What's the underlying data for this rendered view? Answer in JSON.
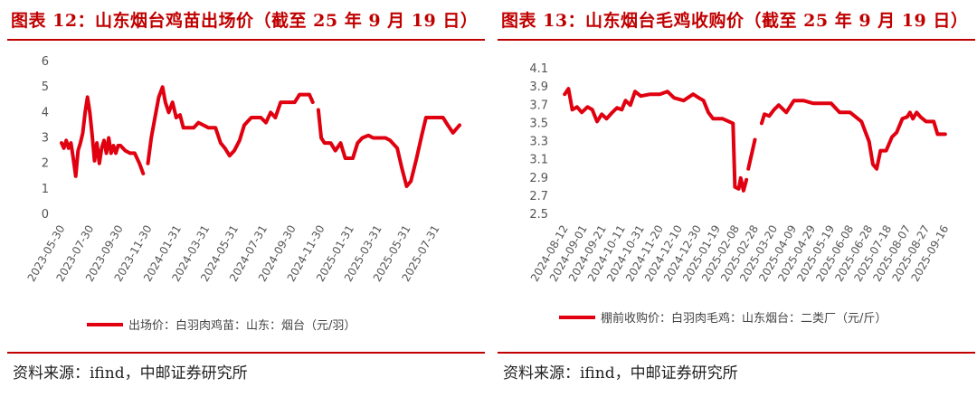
{
  "chart_data": [
    {
      "type": "line",
      "title": "图表 12：山东烟台鸡苗出场价（截至 25 年 9 月 19 日）",
      "source": "资料来源：ifind，中邮证券研究所",
      "ylim": [
        0,
        6
      ],
      "yticks": [
        "0",
        "1",
        "2",
        "3",
        "4",
        "5",
        "6"
      ],
      "xlim": [
        "2023-05-30",
        "2025-09-19"
      ],
      "xticks": [
        "2023-05-30",
        "2023-07-30",
        "2023-09-30",
        "2023-11-30",
        "2024-01-31",
        "2024-03-31",
        "2024-05-31",
        "2024-07-31",
        "2024-09-30",
        "2024-11-30",
        "2025-01-31",
        "2025-03-31",
        "2025-05-31",
        "2025-07-31"
      ],
      "legend": "top-bottom",
      "color": "#e0000f",
      "series": [
        {
          "name": "出场价：白羽肉鸡苗：山东：烟台（元/羽）",
          "segments": [
            [
              [
                "2023-05-30",
                2.8
              ],
              [
                "2023-06-04",
                2.6
              ],
              [
                "2023-06-09",
                2.9
              ],
              [
                "2023-06-14",
                2.6
              ],
              [
                "2023-06-19",
                2.8
              ],
              [
                "2023-06-24",
                2.2
              ],
              [
                "2023-06-29",
                1.5
              ],
              [
                "2023-07-04",
                2.5
              ],
              [
                "2023-07-09",
                2.8
              ],
              [
                "2023-07-14",
                3.2
              ],
              [
                "2023-07-19",
                4.0
              ],
              [
                "2023-07-24",
                4.6
              ],
              [
                "2023-07-29",
                4.0
              ],
              [
                "2023-08-03",
                3.1
              ],
              [
                "2023-08-08",
                2.1
              ],
              [
                "2023-08-13",
                2.8
              ],
              [
                "2023-08-18",
                2.0
              ],
              [
                "2023-08-23",
                2.6
              ],
              [
                "2023-08-28",
                2.9
              ],
              [
                "2023-09-02",
                2.4
              ],
              [
                "2023-09-07",
                3.0
              ],
              [
                "2023-09-12",
                2.4
              ],
              [
                "2023-09-17",
                2.7
              ],
              [
                "2023-09-22",
                2.4
              ],
              [
                "2023-09-27",
                2.7
              ],
              [
                "2023-10-02",
                2.7
              ],
              [
                "2023-10-12",
                2.5
              ],
              [
                "2023-10-22",
                2.4
              ],
              [
                "2023-11-01",
                2.4
              ],
              [
                "2023-11-11",
                2.0
              ],
              [
                "2023-11-19",
                1.6
              ]
            ],
            [
              [
                "2023-11-29",
                2.0
              ],
              [
                "2023-12-06",
                3.0
              ],
              [
                "2023-12-14",
                3.8
              ],
              [
                "2023-12-22",
                4.6
              ],
              [
                "2023-12-30",
                5.0
              ],
              [
                "2024-01-05",
                4.4
              ],
              [
                "2024-01-12",
                4.0
              ],
              [
                "2024-01-20",
                4.4
              ],
              [
                "2024-01-28",
                3.8
              ],
              [
                "2024-02-05",
                3.9
              ],
              [
                "2024-02-12",
                3.4
              ],
              [
                "2024-03-05",
                3.4
              ],
              [
                "2024-03-15",
                3.6
              ],
              [
                "2024-04-05",
                3.4
              ],
              [
                "2024-04-20",
                3.4
              ],
              [
                "2024-05-01",
                2.8
              ],
              [
                "2024-05-10",
                2.6
              ],
              [
                "2024-05-20",
                2.3
              ],
              [
                "2024-05-30",
                2.5
              ],
              [
                "2024-06-10",
                2.9
              ],
              [
                "2024-06-20",
                3.5
              ],
              [
                "2024-07-05",
                3.8
              ],
              [
                "2024-07-25",
                3.8
              ],
              [
                "2024-08-05",
                3.6
              ],
              [
                "2024-08-15",
                4.0
              ],
              [
                "2024-08-25",
                3.8
              ],
              [
                "2024-09-05",
                4.4
              ],
              [
                "2024-10-05",
                4.4
              ],
              [
                "2024-10-15",
                4.7
              ],
              [
                "2024-11-05",
                4.7
              ],
              [
                "2024-11-12",
                4.4
              ]
            ],
            [
              [
                "2024-11-24",
                4.1
              ],
              [
                "2024-11-30",
                3.0
              ],
              [
                "2024-12-07",
                2.8
              ],
              [
                "2024-12-20",
                2.8
              ],
              [
                "2024-12-30",
                2.5
              ],
              [
                "2025-01-10",
                2.8
              ],
              [
                "2025-01-20",
                2.2
              ],
              [
                "2025-02-05",
                2.2
              ],
              [
                "2025-02-15",
                2.8
              ],
              [
                "2025-02-25",
                3.0
              ],
              [
                "2025-03-10",
                3.1
              ],
              [
                "2025-03-20",
                3.0
              ],
              [
                "2025-04-15",
                3.0
              ],
              [
                "2025-04-25",
                2.9
              ],
              [
                "2025-05-10",
                2.6
              ],
              [
                "2025-05-20",
                1.8
              ],
              [
                "2025-05-30",
                1.1
              ],
              [
                "2025-06-08",
                1.3
              ],
              [
                "2025-06-20",
                2.2
              ],
              [
                "2025-07-01",
                3.1
              ],
              [
                "2025-07-10",
                3.8
              ],
              [
                "2025-08-15",
                3.8
              ],
              [
                "2025-08-25",
                3.5
              ],
              [
                "2025-09-05",
                3.2
              ],
              [
                "2025-09-19",
                3.5
              ]
            ]
          ]
        }
      ]
    },
    {
      "type": "line",
      "title": "图表 13：山东烟台毛鸡收购价（截至 25 年 9 月 19 日）",
      "source": "资料来源：ifind，中邮证券研究所",
      "ylim": [
        2.5,
        4.1
      ],
      "yticks": [
        "2.5",
        "2.7",
        "2.9",
        "3.1",
        "3.3",
        "3.5",
        "3.7",
        "3.9",
        "4.1"
      ],
      "xlim": [
        "2024-08-08",
        "2025-09-19"
      ],
      "xticks": [
        "2024-08-12",
        "2024-09-01",
        "2024-09-21",
        "2024-10-11",
        "2024-10-31",
        "2024-11-20",
        "2024-12-10",
        "2024-12-30",
        "2025-01-19",
        "2025-02-08",
        "2025-02-28",
        "2025-03-20",
        "2025-04-09",
        "2025-04-29",
        "2025-05-19",
        "2025-06-08",
        "2025-06-28",
        "2025-07-18",
        "2025-08-07",
        "2025-08-27",
        "2025-09-16"
      ],
      "legend": "top-bottom",
      "color": "#e0000f",
      "series": [
        {
          "name": "棚前收购价：白羽肉毛鸡：山东烟台：二类厂（元/斤）",
          "segments": [
            [
              [
                "2024-08-12",
                3.82
              ],
              [
                "2024-08-16",
                3.88
              ],
              [
                "2024-08-20",
                3.65
              ],
              [
                "2024-08-25",
                3.68
              ],
              [
                "2024-08-30",
                3.62
              ],
              [
                "2024-09-05",
                3.68
              ],
              [
                "2024-09-10",
                3.65
              ],
              [
                "2024-09-15",
                3.52
              ],
              [
                "2024-09-20",
                3.6
              ],
              [
                "2024-09-25",
                3.55
              ],
              [
                "2024-10-01",
                3.62
              ],
              [
                "2024-10-06",
                3.67
              ],
              [
                "2024-10-11",
                3.65
              ],
              [
                "2024-10-15",
                3.75
              ],
              [
                "2024-10-20",
                3.7
              ],
              [
                "2024-10-25",
                3.85
              ],
              [
                "2024-10-31",
                3.8
              ],
              [
                "2024-11-10",
                3.82
              ],
              [
                "2024-11-20",
                3.82
              ],
              [
                "2024-11-28",
                3.85
              ],
              [
                "2024-12-05",
                3.78
              ],
              [
                "2024-12-15",
                3.75
              ],
              [
                "2024-12-25",
                3.82
              ],
              [
                "2024-12-31",
                3.78
              ],
              [
                "2025-01-05",
                3.75
              ],
              [
                "2025-01-10",
                3.62
              ],
              [
                "2025-01-15",
                3.55
              ],
              [
                "2025-01-25",
                3.55
              ],
              [
                "2025-02-05",
                3.5
              ],
              [
                "2025-02-07",
                2.8
              ],
              [
                "2025-02-11",
                2.78
              ],
              [
                "2025-02-13",
                2.9
              ],
              [
                "2025-02-16",
                2.76
              ],
              [
                "2025-02-19",
                2.88
              ]
            ],
            [
              [
                "2025-02-21",
                3.0
              ],
              [
                "2025-02-28",
                3.32
              ]
            ],
            [
              [
                "2025-03-07",
                3.5
              ],
              [
                "2025-03-10",
                3.6
              ],
              [
                "2025-03-15",
                3.58
              ],
              [
                "2025-03-20",
                3.65
              ],
              [
                "2025-03-25",
                3.7
              ],
              [
                "2025-04-02",
                3.62
              ],
              [
                "2025-04-10",
                3.75
              ],
              [
                "2025-04-20",
                3.75
              ],
              [
                "2025-04-30",
                3.72
              ],
              [
                "2025-05-19",
                3.72
              ],
              [
                "2025-05-28",
                3.62
              ],
              [
                "2025-06-08",
                3.62
              ],
              [
                "2025-06-20",
                3.52
              ],
              [
                "2025-06-28",
                3.3
              ],
              [
                "2025-07-02",
                3.05
              ],
              [
                "2025-07-06",
                3.0
              ],
              [
                "2025-07-10",
                3.2
              ],
              [
                "2025-07-16",
                3.2
              ],
              [
                "2025-07-22",
                3.35
              ],
              [
                "2025-07-27",
                3.4
              ],
              [
                "2025-08-02",
                3.55
              ],
              [
                "2025-08-07",
                3.57
              ],
              [
                "2025-08-10",
                3.62
              ],
              [
                "2025-08-13",
                3.55
              ],
              [
                "2025-08-17",
                3.62
              ],
              [
                "2025-08-21",
                3.57
              ],
              [
                "2025-08-27",
                3.52
              ],
              [
                "2025-09-04",
                3.52
              ],
              [
                "2025-09-08",
                3.38
              ],
              [
                "2025-09-12",
                3.38
              ],
              [
                "2025-09-16",
                3.38
              ]
            ]
          ]
        }
      ]
    }
  ]
}
